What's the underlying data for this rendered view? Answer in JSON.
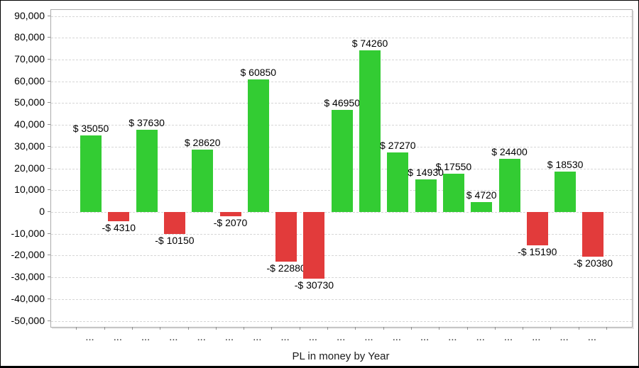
{
  "window": {
    "background": "#ffffff",
    "frame_border_color": "#000000"
  },
  "chart_data": {
    "type": "bar",
    "title": "PL in money by Year",
    "categories": [
      "...",
      "...",
      "...",
      "...",
      "...",
      "...",
      "...",
      "...",
      "...",
      "...",
      "...",
      "...",
      "...",
      "...",
      "...",
      "...",
      "...",
      "...",
      "..."
    ],
    "values": [
      35050,
      -4310,
      37630,
      -10150,
      28620,
      -2070,
      60850,
      -22880,
      -30730,
      46950,
      74260,
      27270,
      14930,
      17550,
      4720,
      24400,
      -15190,
      18530,
      -20380
    ],
    "bar_labels": [
      "$ 35050",
      "-$ 4310",
      "$ 37630",
      "-$ 10150",
      "$ 28620",
      "-$ 2070",
      "$ 60850",
      "-$ 22880",
      "-$ 30730",
      "$ 46950",
      "$ 74260",
      "$ 27270",
      "$ 14930",
      "$ 17550",
      "$ 4720",
      "$ 24400",
      "-$ 15190",
      "$ 18530",
      "-$ 20380"
    ],
    "ylim": [
      -50000,
      90000
    ],
    "ytick_step": 10000,
    "ytick_labels": [
      "90,000",
      "80,000",
      "70,000",
      "60,000",
      "50,000",
      "40,000",
      "30,000",
      "20,000",
      "10,000",
      "0",
      "-10,000",
      "-20,000",
      "-30,000",
      "-40,000",
      "-50,000"
    ],
    "grid": "horizontal-dashed",
    "legend": "none",
    "colors": {
      "positive_bar": "#33cc33",
      "negative_bar": "#e23b3b",
      "gridline": "#d6d6d6",
      "plot_border": "#ababab",
      "text": "#000000"
    }
  }
}
